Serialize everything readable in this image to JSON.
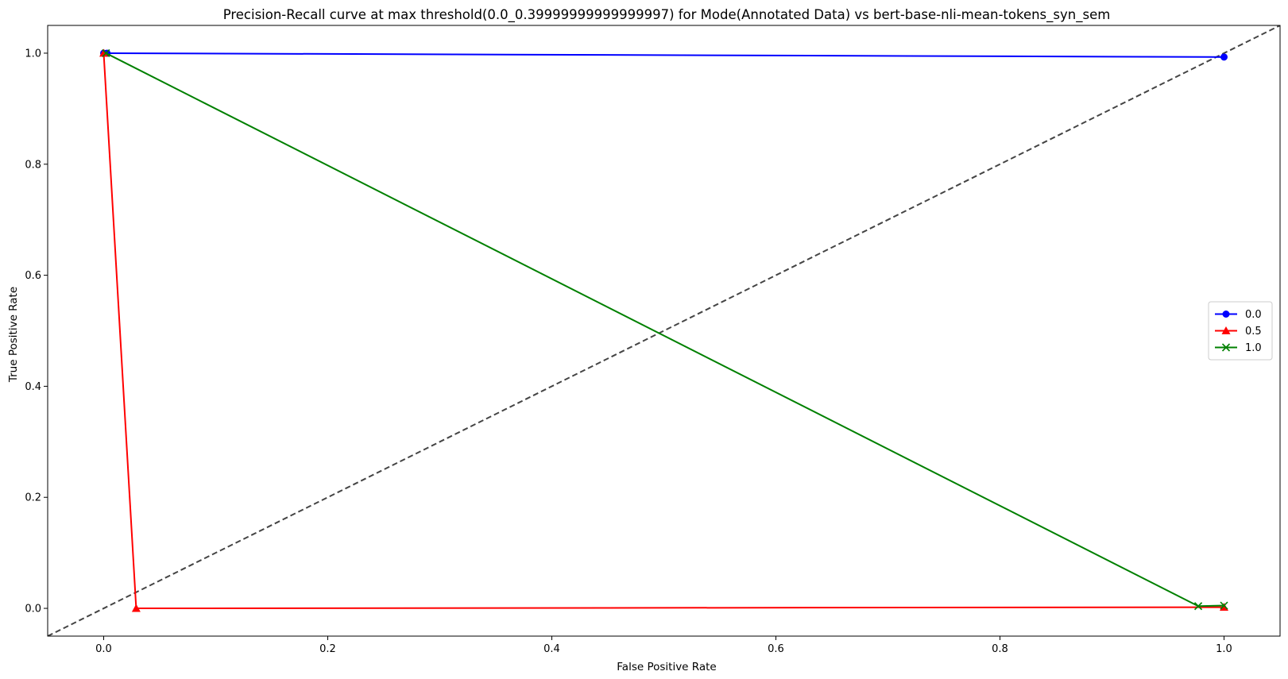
{
  "chart_data": {
    "type": "line",
    "title": "Precision-Recall curve at max threshold(0.0_0.39999999999999997) for Mode(Annotated Data) vs bert-base-nli-mean-tokens_syn_sem",
    "xlabel": "False Positive Rate",
    "ylabel": "True Positive Rate",
    "xlim": [
      -0.05,
      1.05
    ],
    "ylim": [
      -0.05,
      1.05
    ],
    "xticks": [
      0.0,
      0.2,
      0.4,
      0.6,
      0.8,
      1.0
    ],
    "xtick_labels": [
      "0.0",
      "0.2",
      "0.4",
      "0.6",
      "0.8",
      "1.0"
    ],
    "yticks": [
      0.0,
      0.2,
      0.4,
      0.6,
      0.8,
      1.0
    ],
    "ytick_labels": [
      "0.0",
      "0.2",
      "0.4",
      "0.6",
      "0.8",
      "1.0"
    ],
    "grid": false,
    "legend_position": "center-right",
    "series": [
      {
        "name": "0.0",
        "color": "#0000ff",
        "marker": "circle",
        "x": [
          0.0,
          0.003,
          1.0
        ],
        "y": [
          1.0,
          1.0,
          0.993
        ]
      },
      {
        "name": "0.5",
        "color": "#ff0000",
        "marker": "triangle",
        "x": [
          0.0,
          0.029,
          1.0
        ],
        "y": [
          1.0,
          0.0,
          0.002
        ]
      },
      {
        "name": "1.0",
        "color": "#008000",
        "marker": "x",
        "x": [
          0.002,
          0.977,
          1.0
        ],
        "y": [
          1.0,
          0.004,
          0.005
        ]
      }
    ],
    "reference_line": {
      "style": "dashed",
      "color": "#444444",
      "x": [
        -0.05,
        1.05
      ],
      "y": [
        -0.05,
        1.05
      ]
    }
  }
}
